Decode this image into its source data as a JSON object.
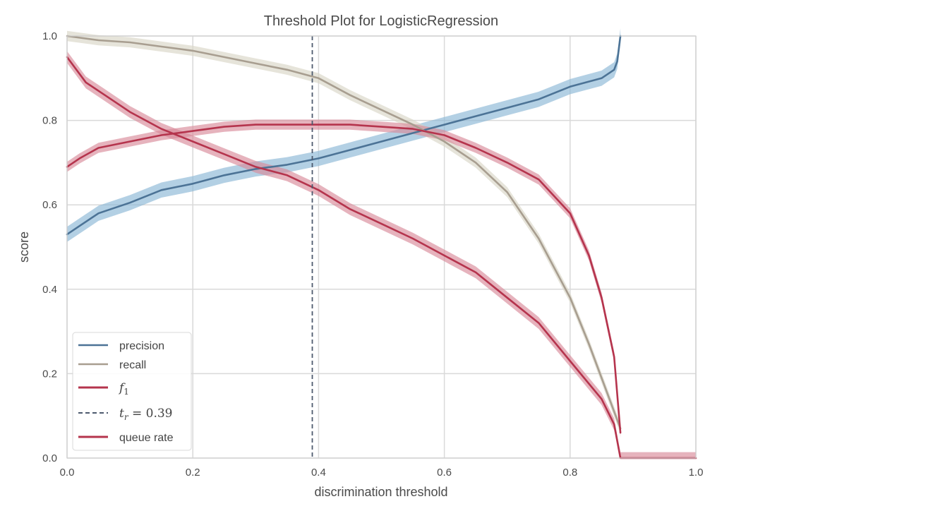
{
  "colors": {
    "precision": "#4c7396",
    "precision_band": "#8ab7d6",
    "recall": "#a89e90",
    "recall_band": "#d9d6c6",
    "f1": "#b5344d",
    "f1_band": "#d98a9a",
    "queue_rate": "#b5344d",
    "queue_rate_band": "#d98a9a",
    "threshold_line": "#4d5a6e",
    "grid": "#d9d9d9",
    "frame": "#cfcfcf"
  },
  "chart_data": {
    "type": "line",
    "title": "Threshold Plot for LogisticRegression",
    "xlabel": "discrimination threshold",
    "ylabel": "score",
    "xlim": [
      0,
      1
    ],
    "ylim": [
      0,
      1
    ],
    "xticks": [
      "0.0",
      "0.2",
      "0.4",
      "0.6",
      "0.8",
      "1.0"
    ],
    "yticks": [
      "0.0",
      "0.2",
      "0.4",
      "0.6",
      "0.8",
      "1.0"
    ],
    "grid": true,
    "legend_position": "lower-left",
    "threshold": {
      "value": 0.39,
      "label_math": "t",
      "label_sub": "r",
      "label_rest": " = 0.39"
    },
    "series": [
      {
        "name": "precision",
        "color_key": "precision",
        "band_key": "precision_band",
        "band": 0.018,
        "x": [
          0.0,
          0.02,
          0.05,
          0.1,
          0.15,
          0.2,
          0.25,
          0.3,
          0.35,
          0.4,
          0.45,
          0.5,
          0.55,
          0.6,
          0.65,
          0.7,
          0.75,
          0.8,
          0.85,
          0.87,
          0.875,
          0.88
        ],
        "y": [
          0.53,
          0.55,
          0.58,
          0.605,
          0.635,
          0.65,
          0.67,
          0.685,
          0.695,
          0.71,
          0.73,
          0.75,
          0.77,
          0.79,
          0.81,
          0.83,
          0.85,
          0.88,
          0.9,
          0.92,
          0.94,
          1.0
        ]
      },
      {
        "name": "recall",
        "color_key": "recall",
        "band_key": "recall_band",
        "band": 0.012,
        "x": [
          0.0,
          0.05,
          0.1,
          0.15,
          0.2,
          0.25,
          0.3,
          0.35,
          0.4,
          0.45,
          0.5,
          0.55,
          0.6,
          0.65,
          0.7,
          0.75,
          0.8,
          0.83,
          0.86,
          0.88
        ],
        "y": [
          1.0,
          0.99,
          0.985,
          0.975,
          0.965,
          0.95,
          0.935,
          0.92,
          0.9,
          0.86,
          0.825,
          0.79,
          0.75,
          0.7,
          0.63,
          0.52,
          0.38,
          0.27,
          0.15,
          0.07
        ]
      },
      {
        "name": "f1",
        "legend_math": "f",
        "legend_sub": "1",
        "color_key": "f1",
        "band_key": "f1_band",
        "band": 0.012,
        "x": [
          0.0,
          0.02,
          0.05,
          0.1,
          0.15,
          0.2,
          0.25,
          0.3,
          0.35,
          0.4,
          0.45,
          0.5,
          0.55,
          0.6,
          0.65,
          0.7,
          0.75,
          0.8,
          0.83,
          0.85,
          0.87,
          0.88
        ],
        "y": [
          0.69,
          0.71,
          0.735,
          0.75,
          0.765,
          0.775,
          0.785,
          0.79,
          0.79,
          0.79,
          0.79,
          0.785,
          0.78,
          0.765,
          0.735,
          0.7,
          0.66,
          0.58,
          0.48,
          0.38,
          0.24,
          0.06
        ]
      },
      {
        "name": "queue rate",
        "color_key": "queue_rate",
        "band_key": "queue_rate_band",
        "band": 0.014,
        "x": [
          0.0,
          0.01,
          0.03,
          0.06,
          0.1,
          0.15,
          0.2,
          0.25,
          0.3,
          0.35,
          0.4,
          0.45,
          0.5,
          0.55,
          0.6,
          0.65,
          0.7,
          0.75,
          0.8,
          0.85,
          0.87,
          0.88,
          0.9,
          0.95,
          1.0
        ],
        "y": [
          0.95,
          0.93,
          0.89,
          0.86,
          0.82,
          0.78,
          0.75,
          0.72,
          0.69,
          0.67,
          0.635,
          0.59,
          0.555,
          0.52,
          0.48,
          0.44,
          0.38,
          0.32,
          0.23,
          0.14,
          0.08,
          0.0,
          0.0,
          0.0,
          0.0
        ]
      }
    ]
  }
}
